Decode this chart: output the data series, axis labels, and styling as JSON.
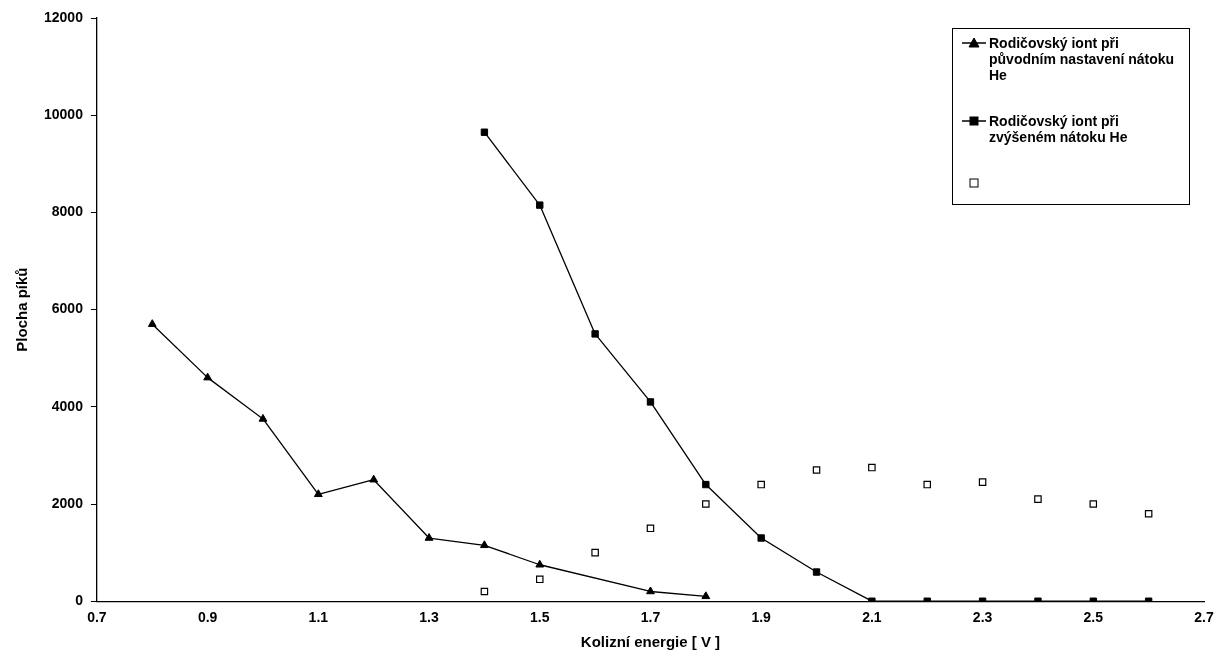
{
  "chart_data": {
    "type": "line",
    "xlabel": "Kolizní energie [ V ]",
    "ylabel": "Plocha píků",
    "xlim": [
      0.7,
      2.7
    ],
    "xticks": [
      0.7,
      0.9,
      1.1,
      1.3,
      1.5,
      1.7,
      1.9,
      2.1,
      2.3,
      2.5,
      2.7
    ],
    "ylim": [
      0,
      12000
    ],
    "yticks": [
      0,
      2000,
      4000,
      6000,
      8000,
      10000,
      12000
    ],
    "grid": false,
    "legend": "top right",
    "series": [
      {
        "name": "Rodičovský iont při původním nastavení nátoku He",
        "color": "#000000",
        "marker": "triangle",
        "x": [
          0.8,
          0.9,
          1.0,
          1.1,
          1.2,
          1.3,
          1.4,
          1.5,
          1.7,
          1.8
        ],
        "values": [
          5700,
          4600,
          3750,
          2200,
          2500,
          1300,
          1150,
          750,
          200,
          100
        ]
      },
      {
        "name": "Rodičovský iont při zvýšeném nátoku He",
        "color": "#000000",
        "marker": "square",
        "x": [
          1.4,
          1.5,
          1.6,
          1.7,
          1.8,
          1.9,
          2.0,
          2.1,
          2.2,
          2.3,
          2.4,
          2.5,
          2.6
        ],
        "values": [
          9650,
          8150,
          5500,
          4100,
          2400,
          1300,
          600,
          0,
          0,
          0,
          0,
          0,
          0
        ]
      },
      {
        "type": "scatter",
        "color": "#000000",
        "marker": "square",
        "x": [
          1.4,
          1.5,
          1.6,
          1.7,
          1.8,
          1.9,
          2.0,
          2.1,
          2.2,
          2.3,
          2.4,
          2.5,
          2.6
        ],
        "values": [
          200,
          450,
          1000,
          1500,
          2000,
          2400,
          2700,
          2750,
          2400,
          2450,
          2100,
          2000,
          1800
        ]
      }
    ]
  }
}
